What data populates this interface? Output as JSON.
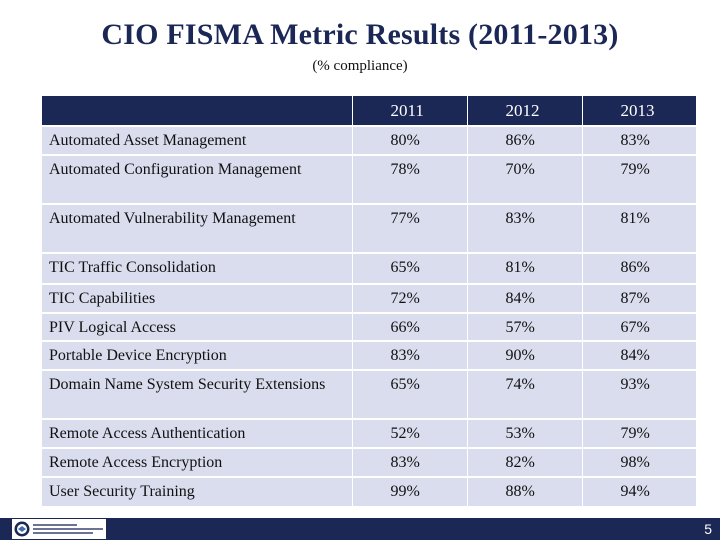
{
  "title": "CIO FISMA Metric Results (2011-2013)",
  "subtitle": "(% compliance)",
  "table": {
    "columns": [
      "",
      "2011",
      "2012",
      "2013"
    ],
    "rows": [
      {
        "label": "Automated Asset Management",
        "values": [
          "80%",
          "86%",
          "83%"
        ]
      },
      {
        "label": "Automated Configuration Management",
        "values": [
          "78%",
          "70%",
          "79%"
        ]
      },
      {
        "label": "Automated Vulnerability Management",
        "values": [
          "77%",
          "83%",
          "81%"
        ]
      },
      {
        "label": "TIC Traffic Consolidation",
        "values": [
          "65%",
          "81%",
          "86%"
        ]
      },
      {
        "label": "TIC Capabilities",
        "values": [
          "72%",
          "84%",
          "87%"
        ]
      },
      {
        "label": "PIV Logical Access",
        "values": [
          "66%",
          "57%",
          "67%"
        ]
      },
      {
        "label": "Portable Device Encryption",
        "values": [
          "83%",
          "90%",
          "84%"
        ]
      },
      {
        "label": "Domain Name System Security Extensions",
        "values": [
          "65%",
          "74%",
          "93%"
        ]
      },
      {
        "label": "Remote Access Authentication",
        "values": [
          "52%",
          "53%",
          "79%"
        ]
      },
      {
        "label": "Remote Access Encryption",
        "values": [
          "83%",
          "82%",
          "98%"
        ]
      },
      {
        "label": "User Security Training",
        "values": [
          "99%",
          "88%",
          "94%"
        ]
      }
    ]
  },
  "footer": {
    "page_number": "5",
    "logo_icon": "dhs-seal-icon"
  },
  "colors": {
    "header_bg": "#1b2755",
    "cell_bg": "#d9dded",
    "title_color": "#1b2755"
  }
}
